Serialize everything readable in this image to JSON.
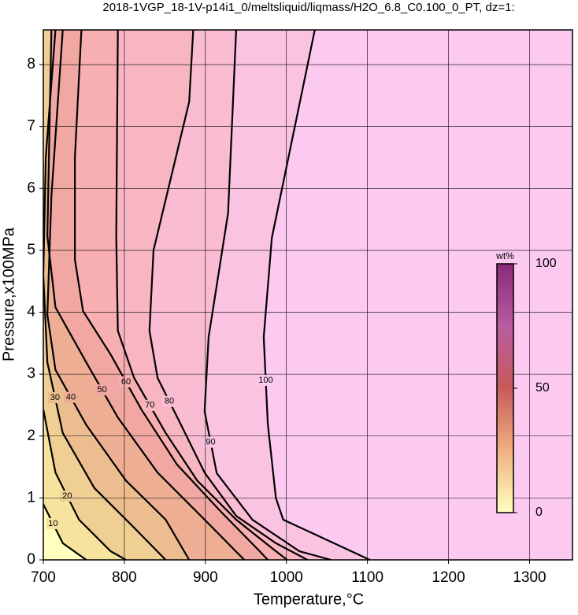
{
  "chart_data": {
    "type": "contour",
    "title": "2018-1VGP_18-1V-p14i1_0/meltsliquid/liqmass/H2O_6.8_C0.100_0_PT, dz=1:",
    "x_label": "Temperature,°C",
    "y_label": "Pressure,x100MPa",
    "xlim": [
      700,
      1353
    ],
    "ylim": [
      0,
      8.56
    ],
    "xticks": [
      700,
      800,
      900,
      1000,
      1100,
      1200,
      1300
    ],
    "yticks": [
      0,
      1,
      2,
      3,
      4,
      5,
      6,
      7,
      8
    ],
    "grid": true,
    "contours": [
      {
        "level": 10,
        "color": "#f6e49e",
        "x": [
          700,
          724,
          753
        ],
        "y": [
          0.9,
          0.27,
          0
        ]
      },
      {
        "level": 20,
        "color": "#f0cf94",
        "x": [
          700,
          715,
          744,
          783,
          802
        ],
        "y": [
          2.43,
          1.41,
          0.65,
          0.14,
          0
        ]
      },
      {
        "level": 30,
        "color": "#ecbd8e",
        "x": [
          715,
          703,
          700,
          705,
          724,
          763,
          812,
          851
        ],
        "y": [
          8.56,
          6.5,
          4.6,
          3.19,
          2.05,
          1.16,
          0.52,
          0
        ]
      },
      {
        "level": 40,
        "color": "#eeae94",
        "x": [
          724,
          710,
          705,
          715,
          753,
          802,
          851,
          880
        ],
        "y": [
          8.56,
          5.87,
          3.96,
          3.07,
          2.18,
          1.28,
          0.65,
          0
        ]
      },
      {
        "level": 50,
        "color": "#f2a8a2",
        "x": [
          710,
          705,
          715,
          753,
          792,
          841,
          899,
          948
        ],
        "y": [
          8.56,
          5.23,
          4.08,
          3.19,
          2.3,
          1.41,
          0.65,
          0
        ]
      },
      {
        "level": 60,
        "color": "#f7afb2",
        "x": [
          747,
          739,
          739,
          749,
          783,
          821,
          865,
          919,
          967,
          977
        ],
        "y": [
          8.56,
          6.5,
          4.85,
          4.02,
          3.32,
          2.43,
          1.54,
          0.78,
          0.14,
          0
        ]
      },
      {
        "level": 70,
        "color": "#f8b6c2",
        "x": [
          792,
          790,
          792,
          812,
          851,
          890,
          938,
          987,
          1001
        ],
        "y": [
          8.56,
          5.23,
          3.7,
          2.94,
          2.05,
          1.28,
          0.65,
          0.14,
          0
        ]
      },
      {
        "level": 80,
        "color": "#f9bcd2",
        "x": [
          885,
          880,
          836,
          831,
          841,
          870,
          899,
          938,
          987,
          1026
        ],
        "y": [
          8.56,
          7.4,
          5.0,
          3.7,
          2.94,
          2.18,
          1.41,
          0.71,
          0.27,
          0
        ]
      },
      {
        "level": 90,
        "color": "#fac3e2",
        "x": [
          938,
          928,
          904,
          899,
          914,
          958,
          1016,
          1055
        ],
        "y": [
          8.56,
          5.6,
          3.6,
          2.4,
          1.4,
          0.65,
          0.14,
          0
        ]
      },
      {
        "level": 100,
        "color": "#fcc9f0",
        "x": [
          1035,
          982,
          972,
          977,
          987,
          996,
          1103
        ],
        "y": [
          8.56,
          5.2,
          3.6,
          2.2,
          1.0,
          0.65,
          0
        ]
      }
    ],
    "colorbar": {
      "label": "wt%",
      "lim": [
        0,
        100
      ],
      "ticks": [
        0,
        50,
        100
      ],
      "colors": [
        "#ffffc0",
        "#f0b080",
        "#c85a5a",
        "#b85ca0",
        "#8a2a7a"
      ]
    }
  }
}
